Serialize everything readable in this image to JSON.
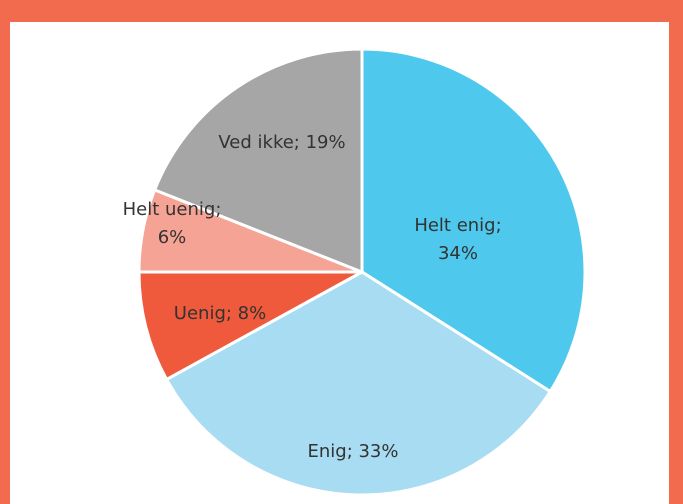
{
  "chart_data": {
    "type": "pie",
    "values": [
      34,
      33,
      8,
      6,
      19
    ],
    "value_labels": [
      [
        "Helt enig;",
        "34%"
      ],
      [
        "Enig; 33%"
      ],
      [
        "Uenig; 8%"
      ],
      [
        "Helt uenig;",
        "6%"
      ],
      [
        "Ved ikke; 19%"
      ]
    ],
    "colors": [
      "#4ec8ec",
      "#a8dcf2",
      "#ef5a3c",
      "#f4a394",
      "#a6a6a6"
    ]
  }
}
